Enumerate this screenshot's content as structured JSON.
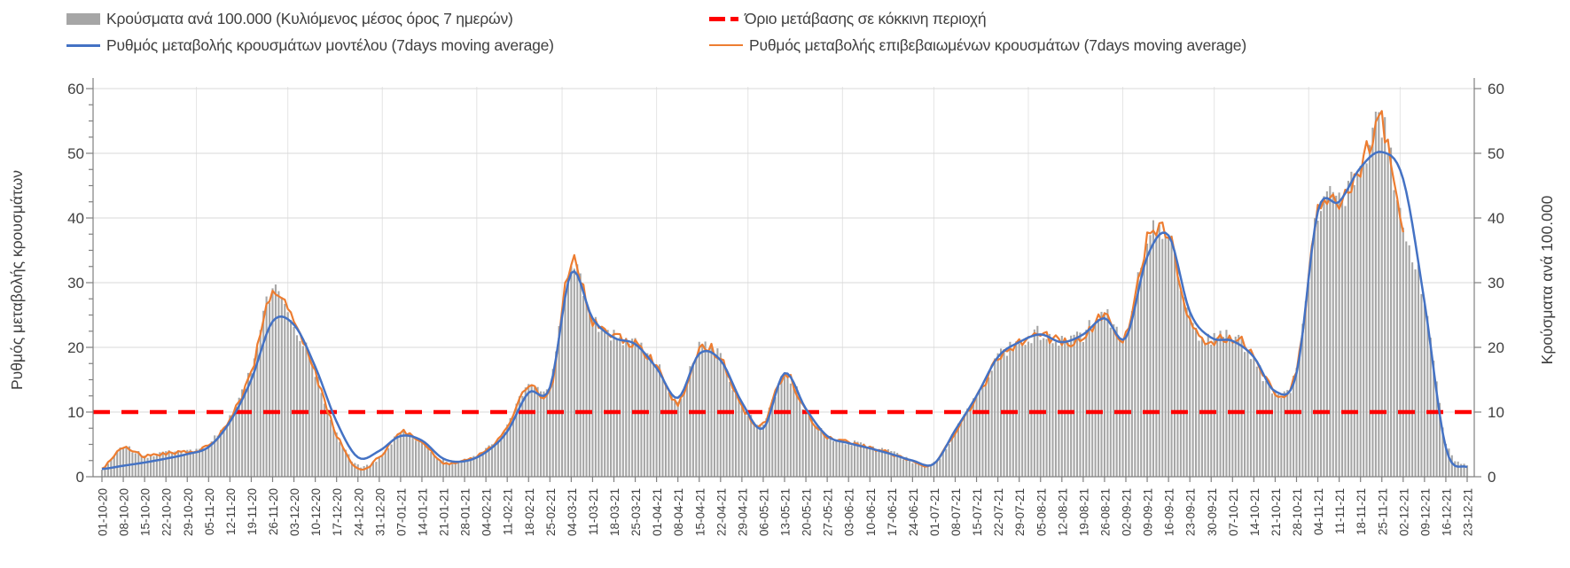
{
  "chart_data": {
    "type": "combo bar+line",
    "title": "",
    "legend": [
      {
        "label": "Κρούσματα ανά 100.000 (Κυλιόμενος μέσος όρος 7 ημερών)",
        "swatch": "gray-bar",
        "color": "#A6A6A6"
      },
      {
        "label": "Ρυθμός μεταβολής κρουσμάτων μοντέλου (7days moving average)",
        "swatch": "blue-line",
        "color": "#4472C4"
      },
      {
        "label": "Όριο μετάβασης σε κόκκινη περιοχή",
        "swatch": "red-dash",
        "color": "#FF0000"
      },
      {
        "label": "Ρυθμός μεταβολής επιβεβαιωμένων κρουσμάτων (7days moving average)",
        "swatch": "orange-line",
        "color": "#ED7D31"
      }
    ],
    "ylabel_left": "Ρυθμός μεταβολής κρουσμάτων",
    "ylabel_right": "Κρούσματα ανά 100.000",
    "y_axis": {
      "min": 0,
      "max": 60,
      "major_step": 10,
      "minor_step": 2.5,
      "ticks": [
        0,
        10,
        20,
        30,
        40,
        50,
        60
      ]
    },
    "grid": "horizontal major + monthly vertical, light gray",
    "threshold": {
      "name": "Όριο μετάβασης σε κόκκινη περιοχή",
      "value": 10,
      "color": "#FF0000",
      "style": "dashed"
    },
    "x_tick_labels": [
      "01-10-20",
      "08-10-20",
      "15-10-20",
      "22-10-20",
      "29-10-20",
      "05-11-20",
      "12-11-20",
      "19-11-20",
      "26-11-20",
      "03-12-20",
      "10-12-20",
      "17-12-20",
      "24-12-20",
      "31-12-20",
      "07-01-21",
      "14-01-21",
      "21-01-21",
      "28-01-21",
      "04-02-21",
      "11-02-21",
      "18-02-21",
      "25-02-21",
      "04-03-21",
      "11-03-21",
      "18-03-21",
      "25-03-21",
      "01-04-21",
      "08-04-21",
      "15-04-21",
      "22-04-21",
      "29-04-21",
      "06-05-21",
      "13-05-21",
      "20-05-21",
      "27-05-21",
      "03-06-21",
      "10-06-21",
      "17-06-21",
      "24-06-21",
      "01-07-21",
      "08-07-21",
      "15-07-21",
      "22-07-21",
      "29-07-21",
      "05-08-21",
      "12-08-21",
      "19-08-21",
      "26-08-21",
      "02-09-21",
      "09-09-21",
      "16-09-21",
      "23-09-21",
      "30-09-21",
      "07-10-21",
      "14-10-21",
      "21-10-21",
      "28-10-21",
      "04-11-21",
      "11-11-21",
      "18-11-21",
      "25-11-21",
      "02-12-21",
      "09-12-21",
      "16-12-21",
      "23-12-21"
    ],
    "x_resolution": "daily bars, weekly tick labels",
    "days_total": 449,
    "month_gridline_days": [
      31,
      61,
      92,
      123,
      151,
      182,
      212,
      243,
      273,
      304,
      335,
      365,
      396,
      426
    ],
    "series": [
      {
        "role": "bars",
        "name": "Κρούσματα ανά 100.000 (Κυλιόμενος μέσος όρος 7 ημερών)",
        "type": "bar",
        "color": "#A6A6A6",
        "weekly_values": [
          1.3,
          4.4,
          3.3,
          3.8,
          4.0,
          5.0,
          9.2,
          16.5,
          29.3,
          23.8,
          16.2,
          6.8,
          1.8,
          2.8,
          6.8,
          5.4,
          2.4,
          2.5,
          4.1,
          7.6,
          14.8,
          13.8,
          33.3,
          24.3,
          21.8,
          20.8,
          17.2,
          11.8,
          19.8,
          18.3,
          11.2,
          8.2,
          15.9,
          10.2,
          6.3,
          5.4,
          4.6,
          3.7,
          2.4,
          2.1,
          7.1,
          12.2,
          18.2,
          20.6,
          22.2,
          21.0,
          22.0,
          25.2,
          22.0,
          36.8,
          37.2,
          24.3,
          21.2,
          21.8,
          18.2,
          13.2,
          16.6,
          41.5,
          43.0,
          47.6,
          54.5,
          39.0,
          27.5,
          5.5,
          1.8
        ]
      },
      {
        "role": "model",
        "name": "Ρυθμός μεταβολής κρουσμάτων μοντέλου (7days moving average)",
        "type": "line",
        "color": "#4472C4",
        "weekly_values": [
          1.2,
          1.7,
          2.2,
          2.8,
          3.5,
          4.6,
          8.5,
          15.0,
          24.0,
          23.5,
          17.0,
          8.5,
          3.0,
          4.0,
          6.3,
          5.6,
          2.8,
          2.4,
          3.8,
          7.0,
          13.0,
          13.8,
          31.5,
          24.5,
          21.5,
          20.5,
          16.8,
          12.2,
          19.0,
          18.0,
          11.5,
          7.5,
          16.0,
          10.5,
          6.3,
          5.2,
          4.4,
          3.5,
          2.5,
          2.0,
          7.2,
          12.5,
          18.5,
          20.8,
          22.0,
          20.8,
          22.0,
          24.5,
          21.5,
          34.0,
          37.3,
          25.5,
          21.5,
          21.0,
          18.5,
          13.2,
          16.0,
          41.0,
          42.5,
          47.8,
          50.2,
          46.0,
          27.0,
          4.5,
          1.5
        ]
      },
      {
        "role": "confirmed",
        "name": "Ρυθμός μεταβολής επιβεβαιωμένων κρουσμάτων (7days moving average)",
        "type": "line",
        "color": "#ED7D31",
        "weekly_values": [
          1.3,
          4.5,
          3.2,
          3.6,
          3.9,
          4.8,
          9.0,
          16.0,
          29.0,
          23.5,
          16.0,
          6.5,
          1.2,
          3.0,
          6.8,
          5.3,
          2.2,
          2.4,
          4.0,
          7.5,
          14.5,
          13.2,
          33.0,
          24.0,
          21.5,
          20.5,
          17.0,
          11.5,
          19.5,
          18.3,
          11.0,
          8.0,
          15.8,
          10.0,
          6.2,
          5.3,
          4.5,
          3.6,
          2.3,
          2.0,
          7.0,
          12.0,
          18.0,
          20.5,
          22.0,
          20.8,
          21.8,
          25.0,
          21.8,
          36.5,
          37.0,
          24.0,
          21.0,
          21.5,
          19.0,
          13.0,
          16.5,
          41.0,
          42.5,
          47.5,
          54.8,
          38.0,
          null,
          null,
          null
        ]
      }
    ],
    "colors": {
      "bars": "#A6A6A6",
      "model_line": "#4472C4",
      "confirmed_line": "#ED7D31",
      "threshold": "#FF0000",
      "gridline": "#D9D9D9",
      "axis": "#808080",
      "text": "#404040"
    }
  }
}
